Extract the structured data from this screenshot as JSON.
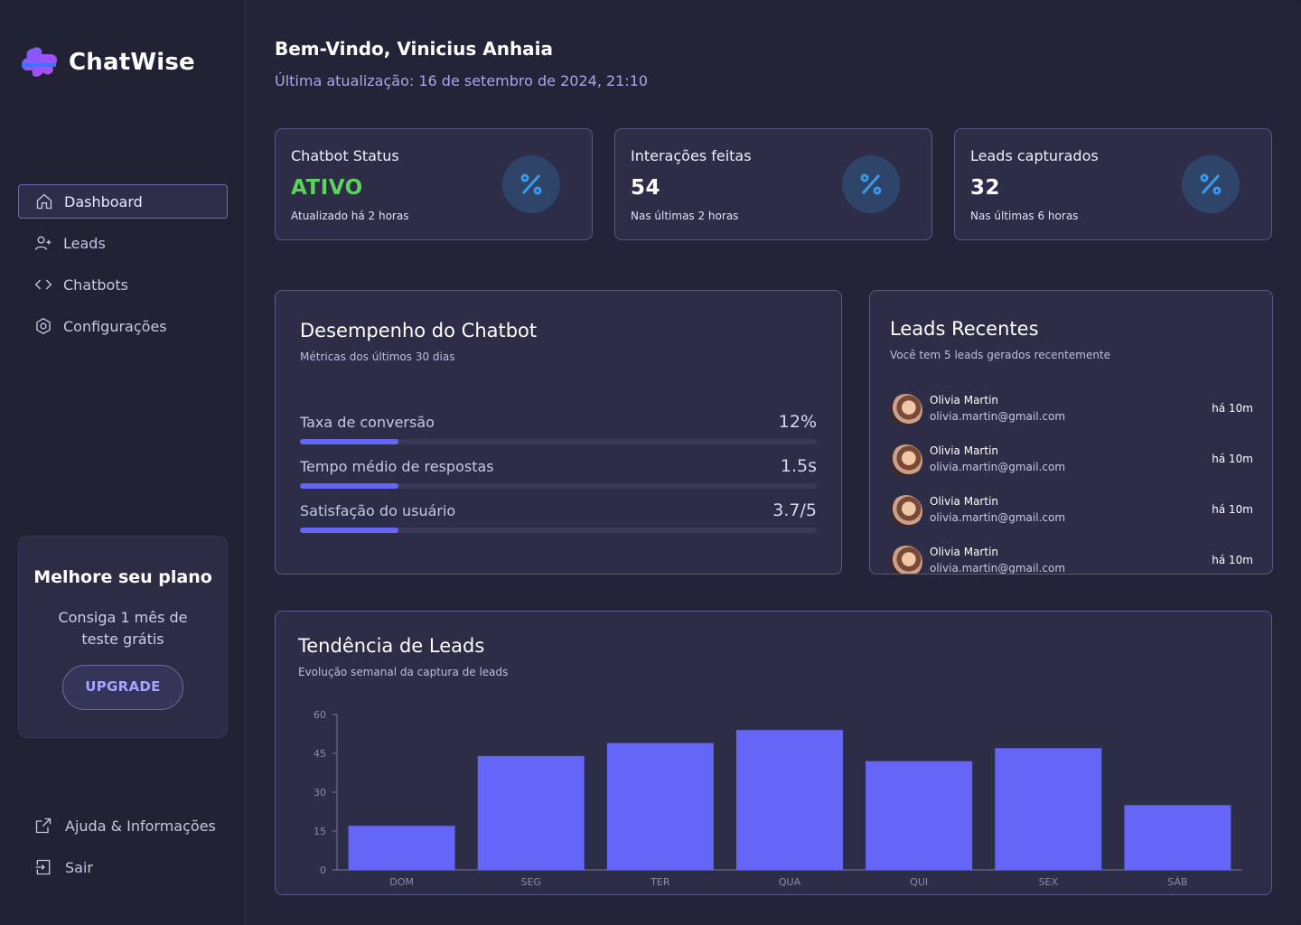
{
  "app": {
    "name": "ChatWise"
  },
  "sidebar": {
    "items": [
      {
        "label": "Dashboard",
        "icon": "home-icon",
        "active": true
      },
      {
        "label": "Leads",
        "icon": "user-plus-icon",
        "active": false
      },
      {
        "label": "Chatbots",
        "icon": "code-icon",
        "active": false
      },
      {
        "label": "Configurações",
        "icon": "settings-icon",
        "active": false
      }
    ],
    "promo": {
      "title": "Melhore seu plano",
      "text": "Consiga 1 mês de teste grátis",
      "button": "UPGRADE"
    },
    "bottom": [
      {
        "label": "Ajuda & Informações",
        "icon": "external-link-icon"
      },
      {
        "label": "Sair",
        "icon": "logout-icon"
      }
    ]
  },
  "header": {
    "greeting": "Bem-Vindo, Vinicius Anhaia",
    "updated": "Última atualização: 16 de setembro de 2024, 21:10"
  },
  "stats": [
    {
      "title": "Chatbot Status",
      "value": "ATIVO",
      "sub": "Atualizado há 2 horas",
      "icon": "percent-icon"
    },
    {
      "title": "Interações feitas",
      "value": "54",
      "sub": "Nas últimas 2 horas",
      "icon": "percent-icon"
    },
    {
      "title": "Leads capturados",
      "value": "32",
      "sub": "Nas últimas 6 horas",
      "icon": "percent-icon"
    }
  ],
  "performance": {
    "title": "Desempenho do Chatbot",
    "subtitle": "Métricas dos últimos 30 dias",
    "metrics": [
      {
        "label": "Taxa de conversão",
        "value": "12%",
        "progress": 0.19
      },
      {
        "label": "Tempo médio de respostas",
        "value": "1.5s",
        "progress": 0.19
      },
      {
        "label": "Satisfação do usuário",
        "value": "3.7/5",
        "progress": 0.19
      }
    ]
  },
  "recent_leads": {
    "title": "Leads Recentes",
    "subtitle": "Você tem 5 leads gerados recentemente",
    "items": [
      {
        "name": "Olivia Martin",
        "email": "olivia.martin@gmail.com",
        "time": "há 10m"
      },
      {
        "name": "Olivia Martin",
        "email": "olivia.martin@gmail.com",
        "time": "há 10m"
      },
      {
        "name": "Olivia Martin",
        "email": "olivia.martin@gmail.com",
        "time": "há 10m"
      },
      {
        "name": "Olivia Martin",
        "email": "olivia.martin@gmail.com",
        "time": "há 10m"
      }
    ]
  },
  "trend": {
    "title": "Tendência de Leads",
    "subtitle": "Evolução semanal da captura de leads"
  },
  "colors": {
    "accent": "#6366f6",
    "status_green": "#5cd35c",
    "icon_bg": "#2f4469",
    "icon_fg": "#3b9ae6"
  },
  "chart_data": {
    "type": "bar",
    "categories": [
      "DOM",
      "SEG",
      "TER",
      "QUA",
      "QUI",
      "SEX",
      "SÁB"
    ],
    "values": [
      17,
      44,
      49,
      54,
      42,
      47,
      25
    ],
    "ylim": [
      0,
      60
    ],
    "yticks": [
      0,
      15,
      30,
      45,
      60
    ],
    "grid": false
  }
}
